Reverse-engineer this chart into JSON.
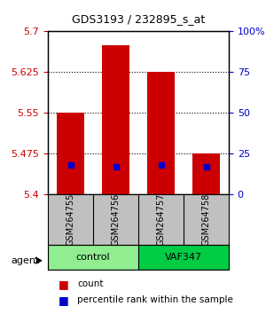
{
  "title": "GDS3193 / 232895_s_at",
  "samples": [
    "GSM264755",
    "GSM264756",
    "GSM264757",
    "GSM264758"
  ],
  "groups": [
    "control",
    "control",
    "VAF347",
    "VAF347"
  ],
  "group_labels": [
    "control",
    "VAF347"
  ],
  "group_colors": [
    "#90EE90",
    "#00CC00"
  ],
  "bar_values": [
    5.55,
    5.675,
    5.625,
    5.475
  ],
  "bar_base": 5.4,
  "percentile_values": [
    0.18,
    0.17,
    0.18,
    0.17
  ],
  "ylim_left": [
    5.4,
    5.7
  ],
  "ylim_right": [
    0,
    100
  ],
  "yticks_left": [
    5.4,
    5.475,
    5.55,
    5.625,
    5.7
  ],
  "yticks_right": [
    0,
    25,
    50,
    75,
    100
  ],
  "ytick_labels_left": [
    "5.4",
    "5.475",
    "5.55",
    "5.625",
    "5.7"
  ],
  "ytick_labels_right": [
    "0",
    "25",
    "50",
    "75",
    "100%"
  ],
  "bar_color": "#CC0000",
  "percentile_color": "#0000CC",
  "background_color": "#ffffff",
  "plot_bg_color": "#ffffff",
  "grid_color": "#000000",
  "sample_bg_color": "#C0C0C0",
  "legend_count_label": "count",
  "legend_pct_label": "percentile rank within the sample",
  "bar_width": 0.6
}
